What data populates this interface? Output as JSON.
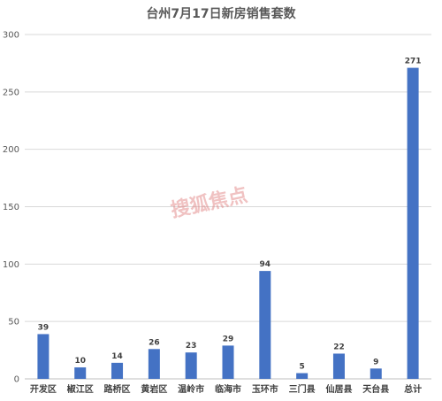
{
  "chart_data": {
    "type": "bar",
    "title": "台州7月17日新房销售套数",
    "categories": [
      "开发区",
      "椒江区",
      "路桥区",
      "黄岩区",
      "温岭市",
      "临海市",
      "玉环市",
      "三门县",
      "仙居县",
      "天台县",
      "总计"
    ],
    "values": [
      39,
      10,
      14,
      26,
      23,
      29,
      94,
      5,
      22,
      9,
      271
    ],
    "ylim": [
      0,
      300
    ],
    "yticks": [
      0,
      50,
      100,
      150,
      200,
      250,
      300
    ],
    "grid": true,
    "bar_color": "#4472c4",
    "xlabel": "",
    "ylabel": ""
  },
  "watermark": "搜狐焦点"
}
